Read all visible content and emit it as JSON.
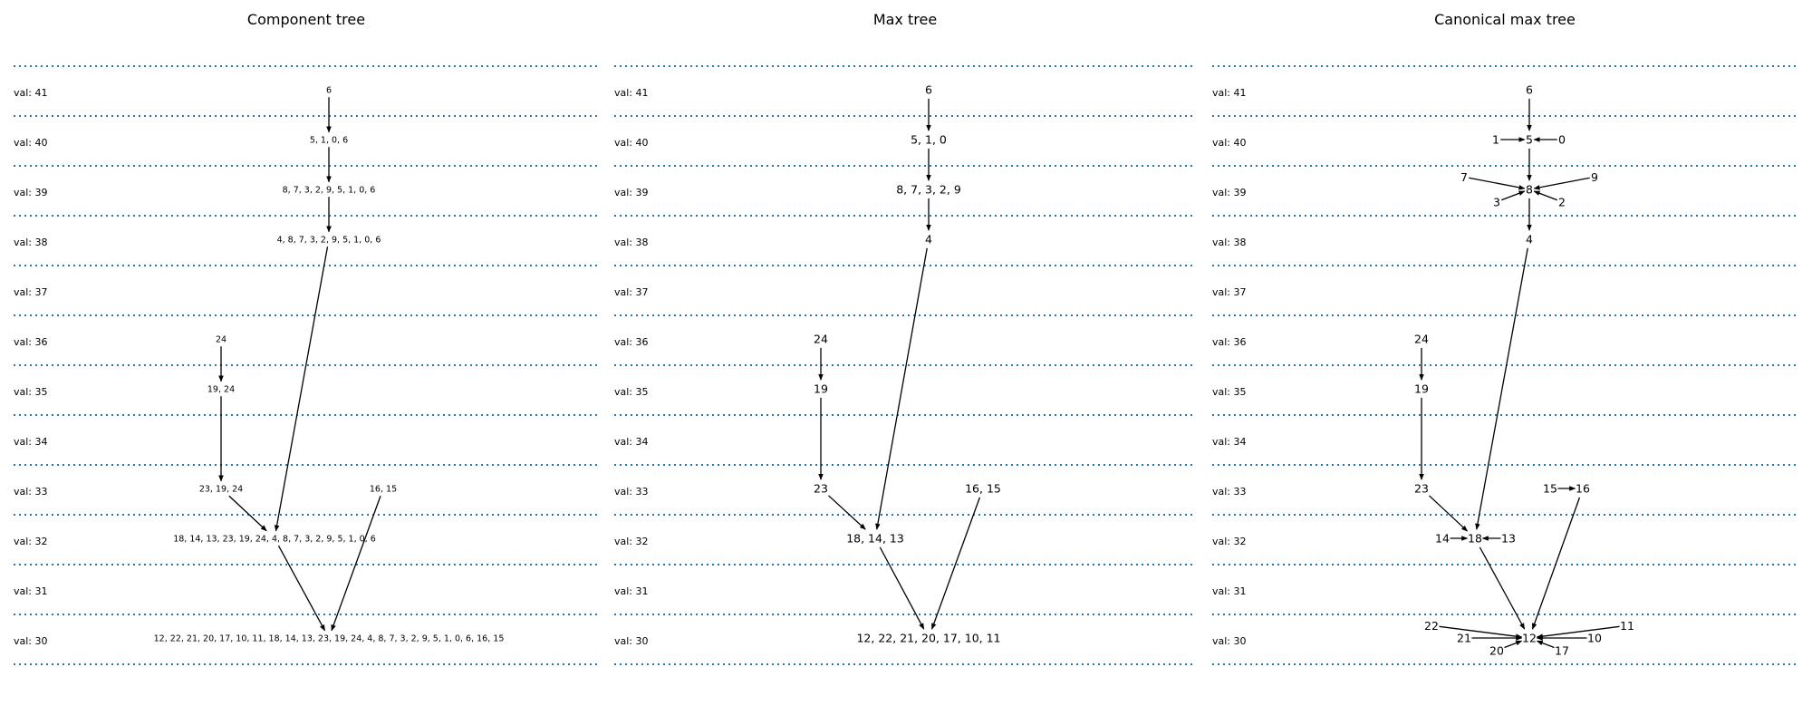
{
  "panels": [
    {
      "title": "Component tree",
      "levels": [
        "val: 41",
        "val: 40",
        "val: 39",
        "val: 38",
        "val: 37",
        "val: 36",
        "val: 35",
        "val: 34",
        "val: 33",
        "val: 32",
        "val: 31",
        "val: 30"
      ],
      "nodes": [
        {
          "id": "n41",
          "label": "6"
        },
        {
          "id": "n40",
          "label": "5, 1, 0, 6"
        },
        {
          "id": "n39",
          "label": "8, 7, 3, 2, 9, 5, 1, 0, 6"
        },
        {
          "id": "n38",
          "label": "4, 8, 7, 3, 2, 9, 5, 1, 0, 6"
        },
        {
          "id": "n36",
          "label": "24"
        },
        {
          "id": "n35",
          "label": "19, 24"
        },
        {
          "id": "n33a",
          "label": "23, 19, 24"
        },
        {
          "id": "n33b",
          "label": "16, 15"
        },
        {
          "id": "n32",
          "label": "18, 14, 13, 23, 19, 24, 4, 8, 7, 3, 2, 9, 5, 1, 0, 6"
        },
        {
          "id": "n30",
          "label": "12, 22, 21, 20, 17, 10, 11, 18, 14, 13, 23, 19, 24, 4, 8, 7, 3, 2, 9, 5, 1, 0, 6, 16, 15"
        }
      ],
      "edges": [
        [
          "n41",
          "n40"
        ],
        [
          "n40",
          "n39"
        ],
        [
          "n39",
          "n38"
        ],
        [
          "n38",
          "n32"
        ],
        [
          "n36",
          "n35"
        ],
        [
          "n35",
          "n33a"
        ],
        [
          "n33a",
          "n32"
        ],
        [
          "n32",
          "n30"
        ],
        [
          "n33b",
          "n30"
        ]
      ]
    },
    {
      "title": "Max tree",
      "levels": [
        "val: 41",
        "val: 40",
        "val: 39",
        "val: 38",
        "val: 37",
        "val: 36",
        "val: 35",
        "val: 34",
        "val: 33",
        "val: 32",
        "val: 31",
        "val: 30"
      ],
      "nodes": [
        {
          "id": "m41",
          "label": "6"
        },
        {
          "id": "m40",
          "label": "5, 1, 0"
        },
        {
          "id": "m39",
          "label": "8, 7, 3, 2, 9"
        },
        {
          "id": "m38",
          "label": "4"
        },
        {
          "id": "m36",
          "label": "24"
        },
        {
          "id": "m35",
          "label": "19"
        },
        {
          "id": "m33a",
          "label": "23"
        },
        {
          "id": "m33b",
          "label": "16, 15"
        },
        {
          "id": "m32",
          "label": "18, 14, 13"
        },
        {
          "id": "m30",
          "label": "12, 22, 21, 20, 17, 10, 11"
        }
      ],
      "edges": [
        [
          "m41",
          "m40"
        ],
        [
          "m40",
          "m39"
        ],
        [
          "m39",
          "m38"
        ],
        [
          "m38",
          "m32"
        ],
        [
          "m36",
          "m35"
        ],
        [
          "m35",
          "m33a"
        ],
        [
          "m33a",
          "m32"
        ],
        [
          "m32",
          "m30"
        ],
        [
          "m33b",
          "m30"
        ]
      ]
    },
    {
      "title": "Canonical max tree",
      "levels": [
        "val: 41",
        "val: 40",
        "val: 39",
        "val: 38",
        "val: 37",
        "val: 36",
        "val: 35",
        "val: 34",
        "val: 33",
        "val: 32",
        "val: 31",
        "val: 30"
      ],
      "nodes": [
        {
          "id": "c6",
          "label": "6"
        },
        {
          "id": "c5",
          "label": "5"
        },
        {
          "id": "c1",
          "label": "1"
        },
        {
          "id": "c0",
          "label": "0"
        },
        {
          "id": "c8",
          "label": "8"
        },
        {
          "id": "c7",
          "label": "7"
        },
        {
          "id": "c9",
          "label": "9"
        },
        {
          "id": "c3",
          "label": "3"
        },
        {
          "id": "c2",
          "label": "2"
        },
        {
          "id": "c4",
          "label": "4"
        },
        {
          "id": "c24",
          "label": "24"
        },
        {
          "id": "c19",
          "label": "19"
        },
        {
          "id": "c23",
          "label": "23"
        },
        {
          "id": "c15",
          "label": "15"
        },
        {
          "id": "c16",
          "label": "16"
        },
        {
          "id": "c18",
          "label": "18"
        },
        {
          "id": "c14",
          "label": "14"
        },
        {
          "id": "c13",
          "label": "13"
        },
        {
          "id": "c12",
          "label": "12"
        },
        {
          "id": "c22",
          "label": "22"
        },
        {
          "id": "c11",
          "label": "11"
        },
        {
          "id": "c21",
          "label": "21"
        },
        {
          "id": "c10",
          "label": "10"
        },
        {
          "id": "c20",
          "label": "20"
        },
        {
          "id": "c17",
          "label": "17"
        }
      ],
      "edges": [
        [
          "c6",
          "c5"
        ],
        [
          "c1",
          "c5"
        ],
        [
          "c0",
          "c5"
        ],
        [
          "c5",
          "c8"
        ],
        [
          "c7",
          "c8"
        ],
        [
          "c9",
          "c8"
        ],
        [
          "c3",
          "c8"
        ],
        [
          "c2",
          "c8"
        ],
        [
          "c8",
          "c4"
        ],
        [
          "c4",
          "c18"
        ],
        [
          "c24",
          "c19"
        ],
        [
          "c19",
          "c23"
        ],
        [
          "c23",
          "c18"
        ],
        [
          "c14",
          "c18"
        ],
        [
          "c13",
          "c18"
        ],
        [
          "c15",
          "c16"
        ],
        [
          "c16",
          "c12"
        ],
        [
          "c18",
          "c12"
        ],
        [
          "c22",
          "c12"
        ],
        [
          "c11",
          "c12"
        ],
        [
          "c21",
          "c12"
        ],
        [
          "c10",
          "c12"
        ],
        [
          "c20",
          "c12"
        ],
        [
          "c17",
          "c12"
        ]
      ]
    }
  ]
}
